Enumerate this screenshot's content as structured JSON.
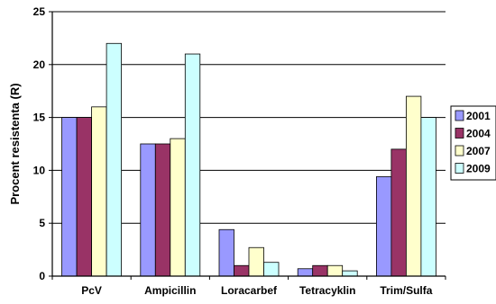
{
  "chart_data": {
    "type": "bar",
    "categories": [
      "PcV",
      "Ampicillin",
      "Loracarbef",
      "Tetracyklin",
      "Trim/Sulfa"
    ],
    "series": [
      {
        "name": "2001",
        "color": "#9999ff",
        "values": [
          15,
          12.5,
          4.4,
          0.7,
          9.4
        ]
      },
      {
        "name": "2004",
        "color": "#993366",
        "values": [
          15,
          12.5,
          1.0,
          1.0,
          12
        ]
      },
      {
        "name": "2007",
        "color": "#ffffcc",
        "values": [
          16,
          13,
          2.7,
          1.0,
          17
        ]
      },
      {
        "name": "2009",
        "color": "#ccffff",
        "values": [
          22,
          21,
          1.3,
          0.5,
          15
        ]
      }
    ],
    "title": "",
    "xlabel": "",
    "ylabel": "Procent resistenta (R)",
    "ylim": [
      0,
      25
    ],
    "yticks": [
      "0",
      "5",
      "10",
      "15",
      "20",
      "25"
    ],
    "grid": true,
    "legend_position": "right"
  }
}
